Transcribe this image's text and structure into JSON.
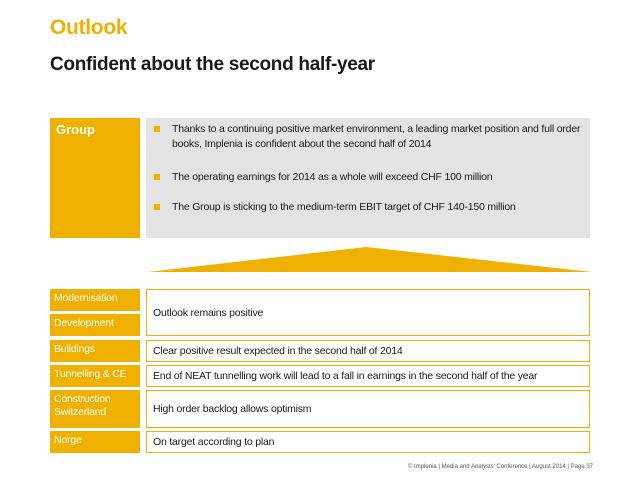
{
  "header": {
    "title": "Outlook",
    "subtitle": "Confident about the second half-year"
  },
  "group": {
    "label": "Group",
    "bullets": [
      "Thanks to a continuing positive market environment, a leading market position and full order books, Implenia is confident about the second half of 2014",
      "The operating earnings for 2014 as a whole will exceed CHF 100 million",
      "The Group is sticking to the medium-term EBIT target of CHF 140-150 million"
    ]
  },
  "segments": [
    {
      "names": [
        "Modernisation",
        "Development"
      ],
      "outlook": "Outlook remains positive"
    },
    {
      "name": "Buildings",
      "outlook": "Clear positive result expected in the second half of 2014"
    },
    {
      "name": "Tunnelling & CE",
      "outlook": "End of NEAT tunnelling work will lead to a fall in earnings in the second half of the year"
    },
    {
      "name": "Construction Switzerland",
      "outlook": "High order backlog allows optimism"
    },
    {
      "name": "Norge",
      "outlook": "On target according to plan"
    }
  ],
  "footer": {
    "text": "© Implenia | Media and Analysts' Conference | August 2014 | Page 37"
  },
  "colors": {
    "accent": "#f0b000",
    "panel": "#e3e3e3"
  }
}
